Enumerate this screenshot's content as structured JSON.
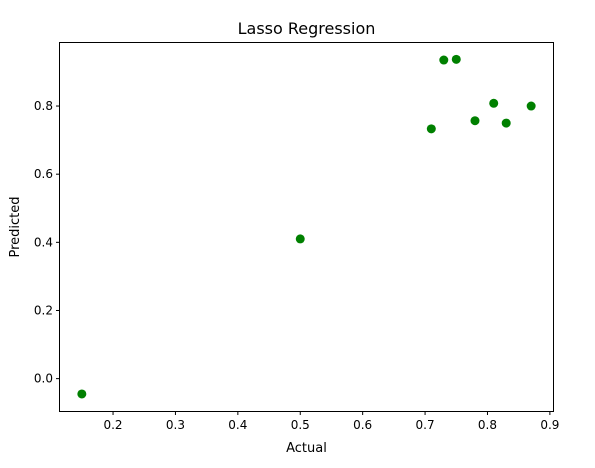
{
  "chart_data": {
    "type": "scatter",
    "title": "Lasso Regression",
    "xlabel": "Actual",
    "ylabel": "Predicted",
    "xlim": [
      0.115,
      0.905
    ],
    "ylim": [
      -0.095,
      0.985
    ],
    "xticks": [
      0.2,
      0.3,
      0.4,
      0.5,
      0.6,
      0.7,
      0.8,
      0.9
    ],
    "xtick_labels": [
      "0.2",
      "0.3",
      "0.4",
      "0.5",
      "0.6",
      "0.7",
      "0.8",
      "0.9"
    ],
    "yticks": [
      0.0,
      0.2,
      0.4,
      0.6,
      0.8
    ],
    "ytick_labels": [
      "0.0",
      "0.2",
      "0.4",
      "0.6",
      "0.8"
    ],
    "grid": false,
    "marker_color": "#008000",
    "series": [
      {
        "x": [
          0.15,
          0.5,
          0.71,
          0.73,
          0.75,
          0.78,
          0.81,
          0.83,
          0.87
        ],
        "y": [
          -0.045,
          0.41,
          0.733,
          0.935,
          0.937,
          0.757,
          0.808,
          0.75,
          0.8
        ]
      }
    ]
  }
}
